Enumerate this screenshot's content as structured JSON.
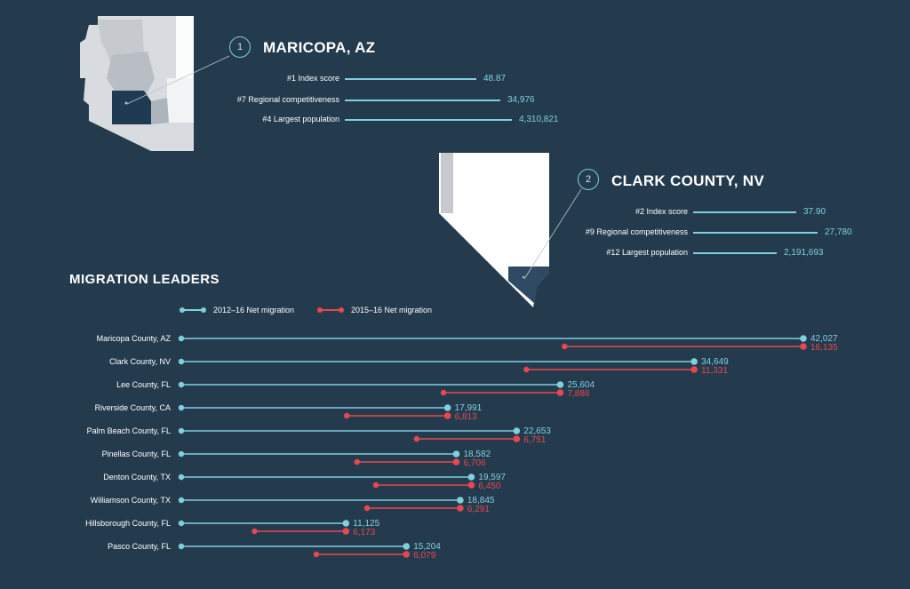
{
  "colors": {
    "background": "#243b4e",
    "accent_blue": "#7fd0de",
    "accent_red": "#e8474f",
    "text": "#ffffff",
    "map_fill": "#d8dbdf",
    "map_highlight": "#1f3a52"
  },
  "counties": [
    {
      "rank": "1",
      "title": "MARICOPA, AZ",
      "metrics": [
        {
          "label": "#1 Index score",
          "value": "48.87"
        },
        {
          "label": "#7 Regional competitiveness",
          "value": "34,976"
        },
        {
          "label": "#4 Largest population",
          "value": "4,310,821"
        }
      ]
    },
    {
      "rank": "2",
      "title": "CLARK COUNTY, NV",
      "metrics": [
        {
          "label": "#2 Index score",
          "value": "37.90"
        },
        {
          "label": "#9 Regional competitiveness",
          "value": "27,780"
        },
        {
          "label": "#12 Largest population",
          "value": "2,191,693"
        }
      ]
    }
  ],
  "migration": {
    "title": "MIGRATION LEADERS",
    "legend": {
      "series_a": "2012–16 Net migration",
      "series_b": "2015–16 Net migration"
    }
  },
  "chart_data": {
    "type": "dumbbell",
    "title": "MIGRATION LEADERS",
    "categories": [
      "Maricopa County, AZ",
      "Clark County, NV",
      "Lee County, FL",
      "Riverside County, CA",
      "Palm Beach County, FL",
      "Pinellas County, FL",
      "Denton County, TX",
      "Williamson County, TX",
      "Hillsborough County, FL",
      "Pasco County, FL"
    ],
    "series": [
      {
        "name": "2012–16 Net migration",
        "values": [
          42027,
          34649,
          25604,
          17991,
          22653,
          18582,
          19597,
          18845,
          11125,
          15204
        ],
        "labels": [
          "42,027",
          "34,649",
          "25,604",
          "17,991",
          "22,653",
          "18,582",
          "19,597",
          "18,845",
          "11,125",
          "15,204"
        ]
      },
      {
        "name": "2015–16 Net migration",
        "values": [
          16135,
          11331,
          7886,
          6813,
          6751,
          6706,
          6450,
          6291,
          6173,
          6079
        ],
        "labels": [
          "16,135",
          "11,331",
          "7,886",
          "6,813",
          "6,751",
          "6,706",
          "6,450",
          "6,291",
          "6,173",
          "6,079"
        ]
      }
    ],
    "xlim": [
      0,
      42027
    ],
    "grid": false,
    "legend_position": "top-left"
  }
}
